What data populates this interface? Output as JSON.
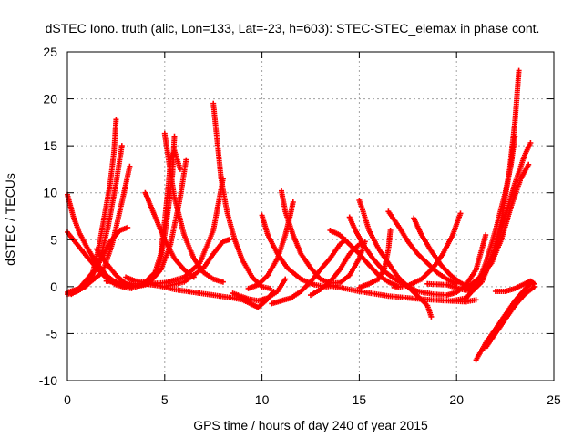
{
  "chart_data": {
    "type": "scatter",
    "title": "dSTEC Iono. truth (alic, Lon=133, Lat=-23, h=603): STEC-STEC_elemax in phase cont.",
    "xlabel": "GPS time / hours of day 240 of year 2015",
    "ylabel": "dSTEC  / TECUs",
    "xlim": [
      0,
      25
    ],
    "ylim": [
      -10,
      25
    ],
    "xticks": [
      0,
      5,
      10,
      15,
      20,
      25
    ],
    "yticks": [
      -10,
      -5,
      0,
      5,
      10,
      15,
      20,
      25
    ],
    "xtick_labels": [
      "0",
      "5",
      "10",
      "15",
      "20",
      "25"
    ],
    "ytick_labels": [
      "-10",
      "-5",
      "0",
      "5",
      "10",
      "15",
      "20",
      "25"
    ],
    "grid": true,
    "marker": "plus",
    "color": "#ff0000",
    "series": [
      {
        "points": [
          [
            0.0,
            9.8
          ],
          [
            0.3,
            7.5
          ],
          [
            0.6,
            5.8
          ],
          [
            1.0,
            4.2
          ],
          [
            1.5,
            2.5
          ],
          [
            2.0,
            1.2
          ],
          [
            2.5,
            0.4
          ],
          [
            3.0,
            0.0
          ]
        ]
      },
      {
        "points": [
          [
            0.0,
            5.8
          ],
          [
            0.5,
            4.5
          ],
          [
            1.0,
            3.2
          ],
          [
            1.5,
            2.0
          ],
          [
            2.0,
            0.9
          ],
          [
            2.5,
            0.2
          ],
          [
            3.0,
            -0.1
          ],
          [
            3.3,
            -0.2
          ]
        ]
      },
      {
        "points": [
          [
            0.0,
            -0.8
          ],
          [
            0.5,
            -0.5
          ],
          [
            1.0,
            0.1
          ],
          [
            1.3,
            1.5
          ],
          [
            1.6,
            4.0
          ],
          [
            1.9,
            7.5
          ],
          [
            2.2,
            11.0
          ],
          [
            2.4,
            14.5
          ],
          [
            2.5,
            17.8
          ]
        ]
      },
      {
        "points": [
          [
            0.3,
            -0.5
          ],
          [
            0.8,
            0.0
          ],
          [
            1.2,
            0.8
          ],
          [
            1.7,
            3.0
          ],
          [
            2.1,
            6.5
          ],
          [
            2.5,
            11.0
          ],
          [
            2.8,
            15.0
          ]
        ]
      },
      {
        "points": [
          [
            0.2,
            -0.8
          ],
          [
            1.0,
            0.2
          ],
          [
            1.8,
            1.5
          ],
          [
            2.3,
            4.5
          ],
          [
            2.8,
            9.0
          ],
          [
            3.2,
            12.8
          ]
        ]
      },
      {
        "points": [
          [
            0.0,
            -0.6
          ],
          [
            0.6,
            -0.2
          ],
          [
            1.5,
            2.0
          ],
          [
            2.2,
            4.8
          ],
          [
            2.7,
            6.0
          ],
          [
            3.1,
            6.3
          ]
        ]
      },
      {
        "points": [
          [
            1.5,
            4.0
          ],
          [
            2.0,
            2.5
          ],
          [
            2.5,
            1.2
          ],
          [
            3.0,
            0.3
          ],
          [
            3.5,
            0.0
          ],
          [
            4.0,
            0.2
          ],
          [
            4.5,
            1.2
          ],
          [
            4.8,
            3.0
          ],
          [
            5.0,
            5.5
          ],
          [
            5.2,
            8.5
          ],
          [
            5.4,
            12.0
          ],
          [
            5.5,
            16.0
          ]
        ]
      },
      {
        "points": [
          [
            3.0,
            1.0
          ],
          [
            3.5,
            0.6
          ],
          [
            4.0,
            0.5
          ],
          [
            4.5,
            1.5
          ],
          [
            4.8,
            3.5
          ],
          [
            5.0,
            7.0
          ],
          [
            5.2,
            11.0
          ],
          [
            5.3,
            13.5
          ],
          [
            5.5,
            14.5
          ],
          [
            5.8,
            12.5
          ]
        ]
      },
      {
        "points": [
          [
            2.5,
            0.5
          ],
          [
            3.0,
            0.1
          ],
          [
            3.5,
            0.0
          ],
          [
            4.2,
            0.4
          ],
          [
            4.8,
            1.8
          ],
          [
            5.3,
            4.5
          ],
          [
            5.8,
            9.5
          ],
          [
            6.1,
            13.5
          ]
        ]
      },
      {
        "points": [
          [
            4.0,
            10.0
          ],
          [
            4.2,
            9.0
          ],
          [
            4.6,
            7.0
          ],
          [
            5.0,
            5.0
          ],
          [
            5.5,
            3.0
          ],
          [
            6.0,
            1.8
          ],
          [
            6.5,
            1.0
          ]
        ]
      },
      {
        "points": [
          [
            5.0,
            16.3
          ],
          [
            5.2,
            13.5
          ],
          [
            5.5,
            9.5
          ],
          [
            6.0,
            5.5
          ],
          [
            6.5,
            3.0
          ],
          [
            7.0,
            1.5
          ],
          [
            7.5,
            0.8
          ],
          [
            8.0,
            0.5
          ]
        ]
      },
      {
        "points": [
          [
            2.0,
            0.6
          ],
          [
            3.0,
            0.3
          ],
          [
            4.0,
            0.3
          ],
          [
            5.0,
            0.4
          ],
          [
            6.0,
            1.0
          ],
          [
            6.8,
            2.5
          ],
          [
            7.5,
            6.0
          ],
          [
            8.0,
            11.5
          ]
        ]
      },
      {
        "points": [
          [
            4.0,
            0.3
          ],
          [
            5.0,
            0.0
          ],
          [
            6.0,
            0.5
          ],
          [
            7.0,
            2.0
          ],
          [
            7.5,
            3.5
          ],
          [
            8.0,
            4.8
          ],
          [
            8.3,
            5.0
          ]
        ]
      },
      {
        "points": [
          [
            7.5,
            19.5
          ],
          [
            7.7,
            15.5
          ],
          [
            7.9,
            11.5
          ],
          [
            8.2,
            8.0
          ],
          [
            8.6,
            5.0
          ],
          [
            9.0,
            2.8
          ],
          [
            9.5,
            1.0
          ],
          [
            10.0,
            0.0
          ],
          [
            10.4,
            -0.2
          ]
        ]
      },
      {
        "points": [
          [
            4.5,
            0.2
          ],
          [
            5.5,
            -0.3
          ],
          [
            6.5,
            -0.6
          ],
          [
            7.5,
            -0.9
          ],
          [
            8.5,
            -1.2
          ],
          [
            9.0,
            -1.4
          ],
          [
            9.5,
            -1.9
          ],
          [
            9.8,
            -2.2
          ],
          [
            10.2,
            -1.5
          ],
          [
            10.6,
            -0.5
          ]
        ]
      },
      {
        "points": [
          [
            8.5,
            -0.7
          ],
          [
            9.3,
            -1.3
          ],
          [
            9.8,
            -1.5
          ],
          [
            10.3,
            -1.2
          ],
          [
            10.8,
            -0.5
          ],
          [
            11.2,
            0.8
          ]
        ]
      },
      {
        "points": [
          [
            10.0,
            7.6
          ],
          [
            10.3,
            5.5
          ],
          [
            10.8,
            3.5
          ],
          [
            11.3,
            2.0
          ],
          [
            12.0,
            0.8
          ],
          [
            12.7,
            0.2
          ],
          [
            13.3,
            0.0
          ],
          [
            13.8,
            0.1
          ]
        ]
      },
      {
        "points": [
          [
            11.0,
            10.2
          ],
          [
            11.2,
            8.0
          ],
          [
            11.6,
            5.5
          ],
          [
            12.0,
            3.5
          ],
          [
            12.5,
            2.0
          ],
          [
            13.0,
            0.8
          ],
          [
            13.5,
            0.4
          ],
          [
            14.0,
            0.4
          ],
          [
            14.5,
            1.2
          ],
          [
            15.0,
            3.0
          ],
          [
            15.3,
            4.8
          ]
        ]
      },
      {
        "points": [
          [
            9.3,
            -0.2
          ],
          [
            9.8,
            0.2
          ],
          [
            10.3,
            1.2
          ],
          [
            10.8,
            3.0
          ],
          [
            11.2,
            5.5
          ],
          [
            11.5,
            8.0
          ],
          [
            11.6,
            9.0
          ]
        ]
      },
      {
        "points": [
          [
            10.5,
            -1.8
          ],
          [
            11.0,
            -1.5
          ],
          [
            11.5,
            -1.2
          ],
          [
            12.0,
            -0.5
          ],
          [
            12.5,
            0.5
          ],
          [
            13.0,
            1.8
          ],
          [
            13.5,
            3.0
          ],
          [
            14.0,
            4.5
          ],
          [
            14.3,
            5.0
          ]
        ]
      },
      {
        "points": [
          [
            12.5,
            -0.9
          ],
          [
            13.0,
            -0.3
          ],
          [
            13.5,
            0.5
          ],
          [
            14.0,
            1.8
          ],
          [
            14.5,
            3.5
          ],
          [
            15.0,
            4.5
          ],
          [
            15.2,
            4.5
          ]
        ]
      },
      {
        "points": [
          [
            13.5,
            6.0
          ],
          [
            14.0,
            5.5
          ],
          [
            14.5,
            4.5
          ],
          [
            15.0,
            3.5
          ],
          [
            15.5,
            2.3
          ],
          [
            16.0,
            1.2
          ],
          [
            16.5,
            0.5
          ],
          [
            17.0,
            0.0
          ]
        ]
      },
      {
        "points": [
          [
            14.5,
            7.4
          ],
          [
            14.8,
            6.0
          ],
          [
            15.2,
            4.5
          ],
          [
            15.7,
            3.0
          ],
          [
            16.2,
            1.8
          ],
          [
            16.8,
            0.8
          ],
          [
            17.5,
            0.0
          ],
          [
            18.0,
            -0.5
          ]
        ]
      },
      {
        "points": [
          [
            15.0,
            9.2
          ],
          [
            15.2,
            8.0
          ],
          [
            15.5,
            6.0
          ],
          [
            16.0,
            4.0
          ],
          [
            16.5,
            2.5
          ],
          [
            17.0,
            1.0
          ],
          [
            17.5,
            0.0
          ],
          [
            18.0,
            -1.0
          ],
          [
            18.5,
            -2.0
          ],
          [
            18.7,
            -3.2
          ]
        ]
      },
      {
        "points": [
          [
            15.0,
            -0.1
          ],
          [
            15.5,
            0.3
          ],
          [
            16.0,
            0.8
          ],
          [
            16.3,
            2.0
          ],
          [
            16.5,
            4.0
          ],
          [
            16.6,
            6.0
          ]
        ]
      },
      {
        "points": [
          [
            16.5,
            8.0
          ],
          [
            17.0,
            6.5
          ],
          [
            17.5,
            4.8
          ],
          [
            18.0,
            3.5
          ],
          [
            18.5,
            2.5
          ],
          [
            19.0,
            1.5
          ],
          [
            19.5,
            0.8
          ],
          [
            20.0,
            0.3
          ]
        ]
      },
      {
        "points": [
          [
            17.8,
            7.3
          ],
          [
            18.2,
            5.5
          ],
          [
            18.7,
            3.8
          ],
          [
            19.2,
            2.3
          ],
          [
            19.7,
            1.2
          ],
          [
            20.2,
            0.4
          ],
          [
            20.6,
            0.0
          ]
        ]
      },
      {
        "points": [
          [
            13.5,
            0.1
          ],
          [
            15.0,
            -0.5
          ],
          [
            16.5,
            -1.0
          ],
          [
            18.0,
            -1.3
          ],
          [
            19.5,
            -1.5
          ],
          [
            20.5,
            -1.6
          ],
          [
            21.0,
            -1.4
          ]
        ]
      },
      {
        "points": [
          [
            16.8,
            -0.1
          ],
          [
            17.5,
            0.1
          ],
          [
            18.2,
            0.8
          ],
          [
            18.8,
            2.0
          ],
          [
            19.3,
            3.5
          ],
          [
            19.8,
            5.5
          ],
          [
            20.2,
            7.8
          ]
        ]
      },
      {
        "points": [
          [
            18.0,
            -0.5
          ],
          [
            18.8,
            -0.8
          ],
          [
            19.5,
            -0.9
          ],
          [
            20.0,
            -0.6
          ],
          [
            20.5,
            0.2
          ],
          [
            21.0,
            1.8
          ],
          [
            21.3,
            4.0
          ],
          [
            21.5,
            5.5
          ]
        ]
      },
      {
        "points": [
          [
            18.5,
            0.3
          ],
          [
            19.5,
            0.2
          ],
          [
            20.3,
            -0.3
          ],
          [
            20.8,
            -0.5
          ],
          [
            21.3,
            0.5
          ],
          [
            21.8,
            3.0
          ],
          [
            22.3,
            7.0
          ],
          [
            22.7,
            12.0
          ],
          [
            23.0,
            17.5
          ],
          [
            23.2,
            23.0
          ]
        ]
      },
      {
        "points": [
          [
            19.8,
            -1.5
          ],
          [
            20.5,
            -1.2
          ],
          [
            21.0,
            0.0
          ],
          [
            21.5,
            2.5
          ],
          [
            22.0,
            6.0
          ],
          [
            22.5,
            10.0
          ],
          [
            22.8,
            13.0
          ],
          [
            23.0,
            16.0
          ]
        ]
      },
      {
        "points": [
          [
            20.5,
            -0.3
          ],
          [
            21.0,
            0.2
          ],
          [
            21.5,
            1.5
          ],
          [
            22.0,
            4.0
          ],
          [
            22.5,
            7.5
          ],
          [
            23.0,
            11.0
          ],
          [
            23.5,
            14.0
          ],
          [
            23.8,
            15.3
          ]
        ]
      },
      {
        "points": [
          [
            20.5,
            -0.2
          ],
          [
            21.2,
            1.0
          ],
          [
            21.8,
            2.5
          ],
          [
            22.3,
            5.0
          ],
          [
            22.8,
            8.5
          ],
          [
            23.3,
            11.5
          ],
          [
            23.7,
            13.0
          ]
        ]
      },
      {
        "points": [
          [
            21.0,
            -7.8
          ],
          [
            21.5,
            -6.0
          ],
          [
            22.0,
            -4.5
          ],
          [
            22.5,
            -3.0
          ],
          [
            23.0,
            -1.5
          ],
          [
            23.5,
            -0.3
          ],
          [
            23.8,
            0.3
          ],
          [
            24.0,
            0.3
          ]
        ]
      },
      {
        "points": [
          [
            21.5,
            -6.5
          ],
          [
            22.0,
            -5.0
          ],
          [
            22.5,
            -3.5
          ],
          [
            23.0,
            -2.0
          ],
          [
            23.5,
            -0.8
          ],
          [
            24.0,
            0.0
          ]
        ]
      },
      {
        "points": [
          [
            22.0,
            -0.5
          ],
          [
            22.5,
            -0.5
          ],
          [
            23.0,
            -0.2
          ],
          [
            23.5,
            0.3
          ],
          [
            23.8,
            0.6
          ],
          [
            24.0,
            0.3
          ]
        ]
      }
    ]
  }
}
